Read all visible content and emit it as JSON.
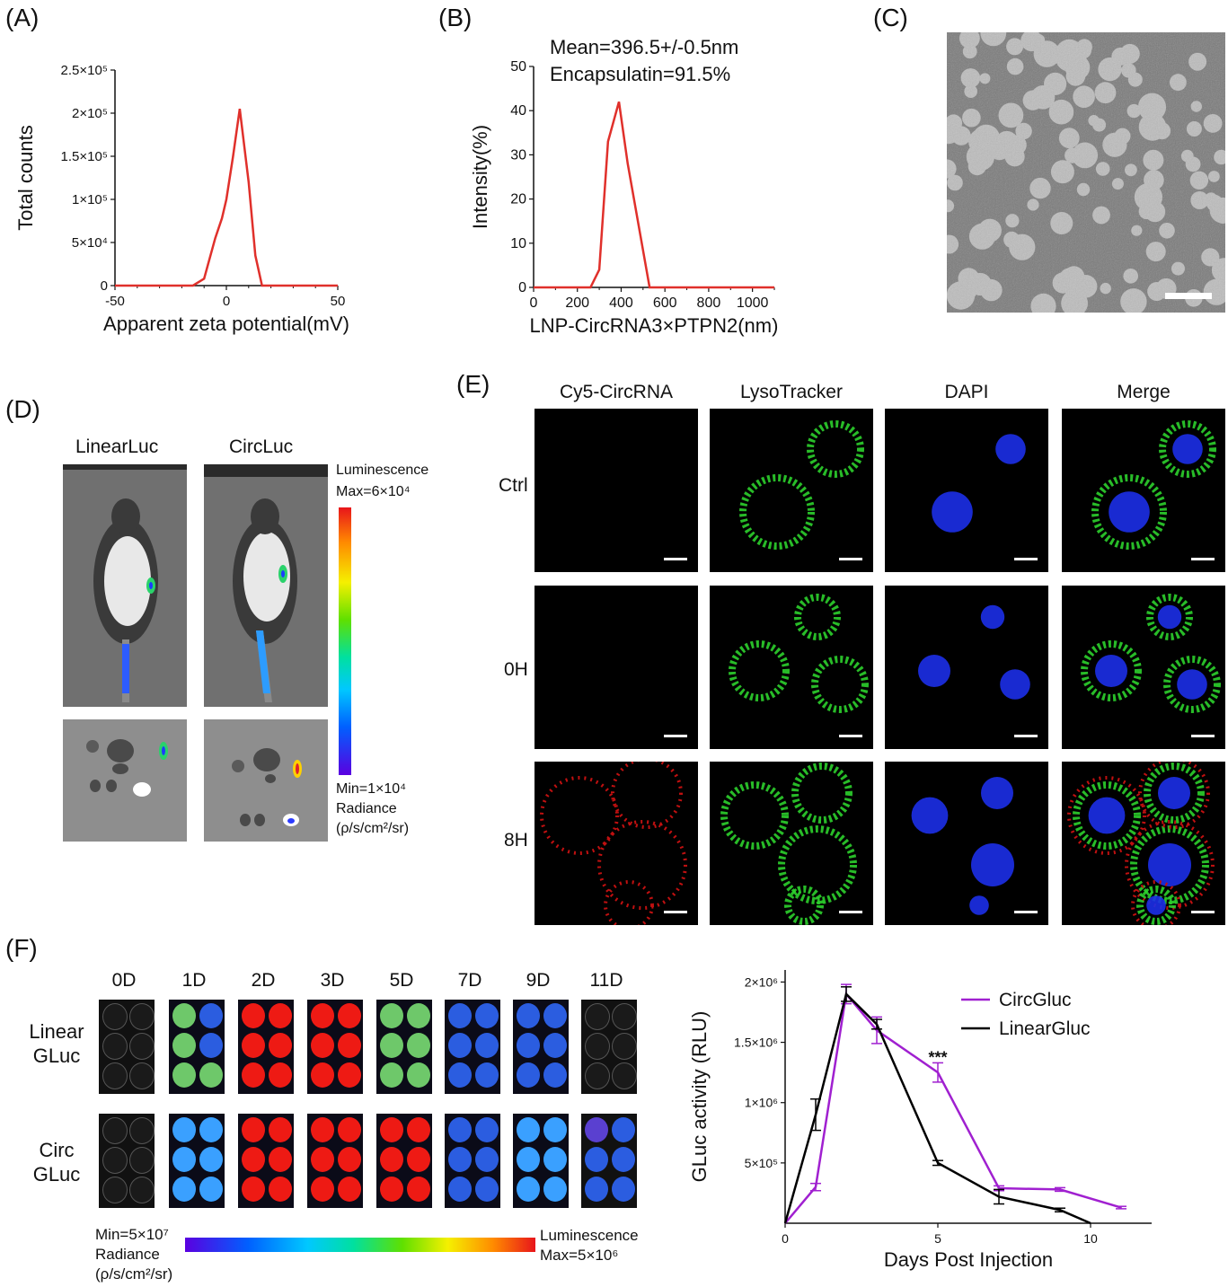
{
  "panels": {
    "A": "(A)",
    "B": "(B)",
    "C": "(C)",
    "D": "(D)",
    "E": "(E)",
    "F": "(F)"
  },
  "panelA": {
    "chart_data": {
      "type": "line",
      "xlabel": "Apparent zeta potential(mV)",
      "ylabel": "Total counts",
      "xlim": [
        -50,
        50
      ],
      "ylim": [
        0,
        250000
      ],
      "x_ticks": [
        "-50",
        "0",
        "50"
      ],
      "x_tick_values": [
        -50,
        0,
        50
      ],
      "y_ticks": [
        "0",
        "5×10⁴",
        "1×10⁵",
        "1.5×10⁵",
        "2×10⁵",
        "2.5×10⁵"
      ],
      "y_tick_values": [
        0,
        50000,
        100000,
        150000,
        200000,
        250000
      ],
      "series": [
        {
          "color": "#e0302b",
          "x": [
            -50,
            -15,
            -10,
            -5,
            -2,
            0,
            3,
            6,
            10,
            13,
            16,
            50
          ],
          "y": [
            0,
            0,
            8000,
            55000,
            78000,
            100000,
            150000,
            205000,
            120000,
            35000,
            0,
            0
          ]
        }
      ]
    }
  },
  "panelB": {
    "annotation1": "Mean=396.5+/-0.5nm",
    "annotation2": "Encapsulatin=91.5%",
    "chart_data": {
      "type": "line",
      "xlabel": "LNP-CircRNA3×PTPN2(nm)",
      "ylabel": "Intensity(%)",
      "xlim": [
        0,
        1100
      ],
      "ylim": [
        0,
        50
      ],
      "x_ticks": [
        "0",
        "200",
        "400",
        "600",
        "800",
        "1000"
      ],
      "x_tick_values": [
        0,
        200,
        400,
        600,
        800,
        1000
      ],
      "y_ticks": [
        "0",
        "10",
        "20",
        "30",
        "40",
        "50"
      ],
      "y_tick_values": [
        0,
        10,
        20,
        30,
        40,
        50
      ],
      "series": [
        {
          "color": "#e0302b",
          "x": [
            0,
            260,
            300,
            340,
            390,
            430,
            530,
            1100
          ],
          "y": [
            0,
            0,
            4,
            33,
            42,
            28,
            0,
            0
          ]
        }
      ]
    }
  },
  "panelD": {
    "col1": "LinearLuc",
    "col2": "CircLuc",
    "legend_top1": "Luminescence",
    "legend_top2": "Max=6×10⁴",
    "legend_bot1": "Min=1×10⁴",
    "legend_bot2": "Radiance",
    "legend_bot3": "(ρ/s/cm²/sr)"
  },
  "panelE": {
    "columns": [
      "Cy5-CircRNA",
      "LysoTracker",
      "DAPI",
      "Merge"
    ],
    "rows": [
      "Ctrl",
      "0H",
      "8H"
    ]
  },
  "panelF": {
    "days": [
      "0D",
      "1D",
      "2D",
      "3D",
      "5D",
      "7D",
      "9D",
      "11D"
    ],
    "row1a": "Linear",
    "row1b": "GLuc",
    "row2a": "Circ",
    "row2b": "GLuc",
    "min1": "Min=5×10⁷",
    "min2": "Radiance",
    "min3": "(ρ/s/cm²/sr)",
    "max1": "Luminescence",
    "max2": "Max=5×10⁶",
    "chart_data": {
      "type": "line",
      "xlabel": "Days Post Injection",
      "ylabel": "GLuc activity (RLU)",
      "xlim": [
        0,
        12
      ],
      "ylim": [
        0,
        2100000
      ],
      "x_ticks": [
        "0",
        "5",
        "10"
      ],
      "x_tick_values": [
        0,
        5,
        10
      ],
      "y_ticks": [
        "5×10⁵",
        "1×10⁶",
        "1.5×10⁶",
        "2×10⁶"
      ],
      "y_tick_values": [
        500000,
        1000000,
        1500000,
        2000000
      ],
      "annotation": "***",
      "annotation_x": 5,
      "series": [
        {
          "name": "CircGluc",
          "color": "#a020d0",
          "x": [
            0,
            1,
            2,
            3,
            5,
            7,
            9,
            11
          ],
          "y": [
            0,
            300000,
            1900000,
            1600000,
            1250000,
            290000,
            280000,
            130000
          ],
          "err": [
            0,
            30000,
            80000,
            110000,
            80000,
            20000,
            15000,
            10000
          ]
        },
        {
          "name": "LinearGluc",
          "color": "#000000",
          "x": [
            0,
            1,
            2,
            3,
            5,
            7,
            9,
            10
          ],
          "y": [
            0,
            900000,
            1900000,
            1650000,
            500000,
            220000,
            110000,
            0
          ],
          "err": [
            0,
            130000,
            60000,
            40000,
            20000,
            60000,
            15000,
            0
          ]
        }
      ]
    }
  }
}
